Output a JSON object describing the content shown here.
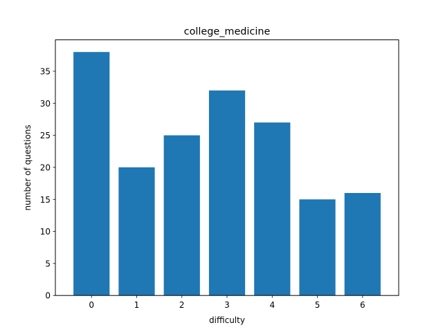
{
  "chart_data": {
    "type": "bar",
    "title": "college_medicine",
    "xlabel": "difficulty",
    "ylabel": "number of questions",
    "categories": [
      "0",
      "1",
      "2",
      "3",
      "4",
      "5",
      "6"
    ],
    "values": [
      38,
      20,
      25,
      32,
      27,
      15,
      16
    ],
    "ylim": [
      0,
      39.9
    ],
    "yticks": [
      0,
      5,
      10,
      15,
      20,
      25,
      30,
      35
    ],
    "grid": false,
    "bar_color": "#1f77b4"
  }
}
